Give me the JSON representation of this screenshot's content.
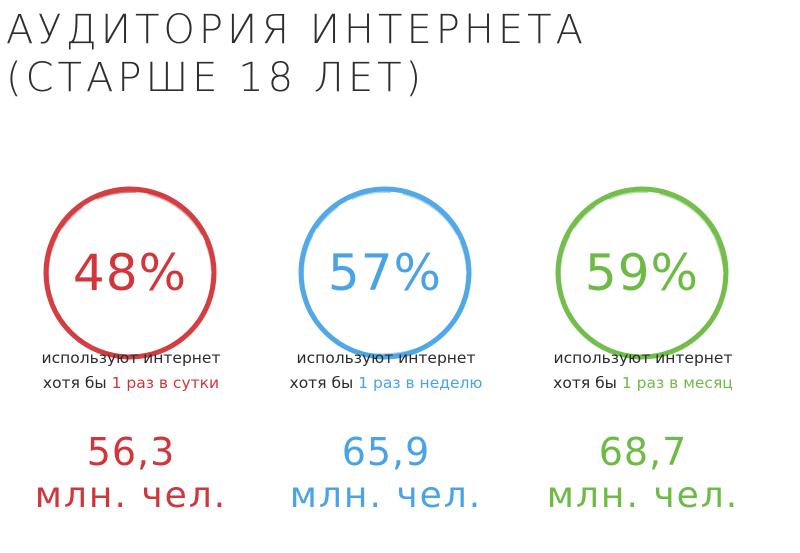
{
  "title": {
    "line1": "АУДИТОРИЯ ИНТЕРНЕТА",
    "line2": "(СТАРШЕ 18 ЛЕТ)"
  },
  "colors": {
    "red": "#d0363a",
    "blue": "#4aa3e6",
    "green": "#6dbb45"
  },
  "stats": [
    {
      "percent": "48%",
      "caption_line1": "используют интернет",
      "caption_prefix": "хотя бы ",
      "caption_highlight": "1 раз в сутки",
      "number": "56,3",
      "unit": "млн. чел."
    },
    {
      "percent": "57%",
      "caption_line1": "используют интернет",
      "caption_prefix": "хотя бы ",
      "caption_highlight": "1 раз в неделю",
      "number": "65,9",
      "unit": "млн. чел."
    },
    {
      "percent": "59%",
      "caption_line1": "используют интернет",
      "caption_prefix": "хотя бы ",
      "caption_highlight": "1 раз в месяц",
      "number": "68,7",
      "unit": "млн. чел."
    }
  ]
}
